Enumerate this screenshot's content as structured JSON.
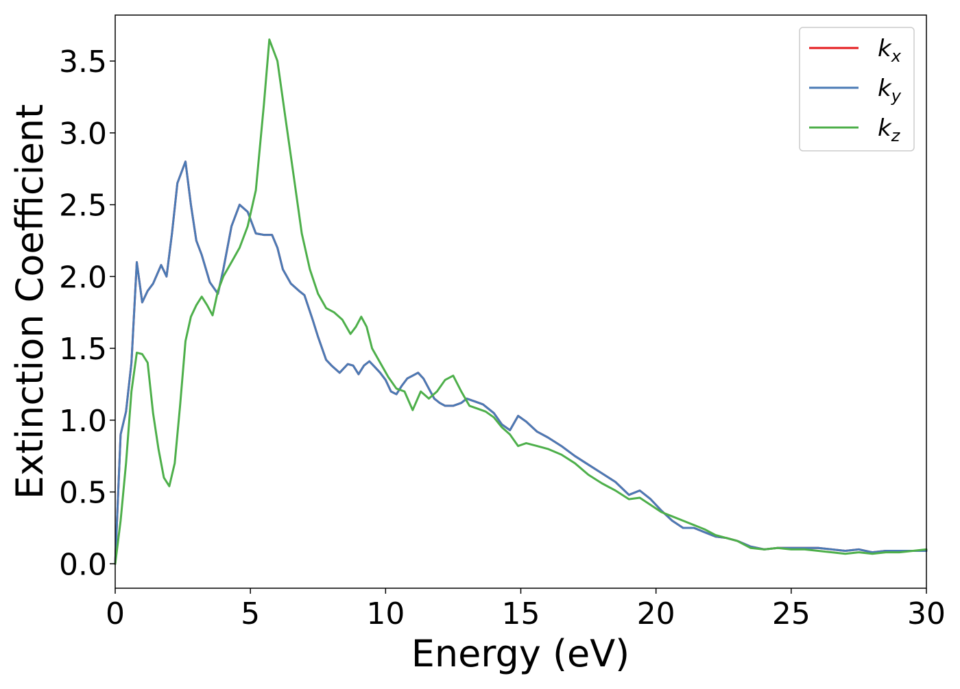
{
  "chart_data": {
    "type": "line",
    "xlabel": "Energy (eV)",
    "ylabel": "Extinction Coefficient",
    "xlim": [
      0,
      30
    ],
    "ylim": [
      -0.17,
      3.82
    ],
    "xticks": [
      0,
      5,
      10,
      15,
      20,
      25,
      30
    ],
    "yticks": [
      0.0,
      0.5,
      1.0,
      1.5,
      2.0,
      2.5,
      3.0,
      3.5
    ],
    "xtick_labels": [
      "0",
      "5",
      "10",
      "15",
      "20",
      "25",
      "30"
    ],
    "ytick_labels": [
      "0.0",
      "0.5",
      "1.0",
      "1.5",
      "2.0",
      "2.5",
      "3.0",
      "3.5"
    ],
    "grid": false,
    "legend_position": "top-right",
    "series": [
      {
        "name": "k_x",
        "label_base": "k",
        "label_sub": "x",
        "color": "#e41a1c",
        "x": [
          0,
          0.2,
          0.4,
          0.6,
          0.8,
          1.0,
          1.2,
          1.4,
          1.7,
          1.9,
          2.1,
          2.3,
          2.6,
          2.8,
          3.0,
          3.2,
          3.5,
          3.8,
          4.0,
          4.3,
          4.6,
          4.9,
          5.2,
          5.5,
          5.8,
          6.0,
          6.2,
          6.5,
          6.8,
          7.0,
          7.3,
          7.5,
          7.8,
          8.0,
          8.3,
          8.6,
          8.8,
          9.0,
          9.2,
          9.4,
          9.6,
          9.8,
          10.0,
          10.2,
          10.4,
          10.6,
          10.8,
          11.0,
          11.2,
          11.4,
          11.6,
          11.8,
          12.0,
          12.2,
          12.5,
          12.8,
          13.0,
          13.3,
          13.6,
          14.0,
          14.3,
          14.6,
          14.9,
          15.2,
          15.6,
          16.0,
          16.5,
          17.0,
          17.5,
          18.0,
          18.5,
          19.0,
          19.4,
          19.8,
          20.2,
          20.6,
          21.0,
          21.4,
          21.8,
          22.2,
          22.6,
          23.0,
          23.5,
          24.0,
          24.5,
          25.0,
          25.5,
          26.0,
          26.5,
          27.0,
          27.5,
          28.0,
          28.5,
          29.0,
          29.5,
          30.0
        ],
        "y": [
          0.0,
          0.9,
          1.06,
          1.4,
          2.1,
          1.82,
          1.9,
          1.95,
          2.08,
          2.0,
          2.3,
          2.65,
          2.8,
          2.5,
          2.25,
          2.15,
          1.96,
          1.88,
          2.05,
          2.35,
          2.5,
          2.45,
          2.3,
          2.29,
          2.29,
          2.2,
          2.05,
          1.95,
          1.9,
          1.87,
          1.7,
          1.58,
          1.42,
          1.38,
          1.33,
          1.39,
          1.38,
          1.32,
          1.38,
          1.41,
          1.37,
          1.33,
          1.28,
          1.2,
          1.18,
          1.24,
          1.29,
          1.31,
          1.33,
          1.29,
          1.22,
          1.15,
          1.12,
          1.1,
          1.1,
          1.12,
          1.15,
          1.13,
          1.11,
          1.05,
          0.97,
          0.93,
          1.03,
          0.99,
          0.92,
          0.88,
          0.82,
          0.75,
          0.69,
          0.63,
          0.57,
          0.48,
          0.51,
          0.45,
          0.37,
          0.3,
          0.25,
          0.25,
          0.22,
          0.19,
          0.18,
          0.16,
          0.12,
          0.1,
          0.11,
          0.11,
          0.11,
          0.11,
          0.1,
          0.09,
          0.1,
          0.08,
          0.09,
          0.09,
          0.09,
          0.09
        ]
      },
      {
        "name": "k_y",
        "label_base": "k",
        "label_sub": "y",
        "color": "#4a7ab5",
        "x": [
          0,
          0.2,
          0.4,
          0.6,
          0.8,
          1.0,
          1.2,
          1.4,
          1.7,
          1.9,
          2.1,
          2.3,
          2.6,
          2.8,
          3.0,
          3.2,
          3.5,
          3.8,
          4.0,
          4.3,
          4.6,
          4.9,
          5.2,
          5.5,
          5.8,
          6.0,
          6.2,
          6.5,
          6.8,
          7.0,
          7.3,
          7.5,
          7.8,
          8.0,
          8.3,
          8.6,
          8.8,
          9.0,
          9.2,
          9.4,
          9.6,
          9.8,
          10.0,
          10.2,
          10.4,
          10.6,
          10.8,
          11.0,
          11.2,
          11.4,
          11.6,
          11.8,
          12.0,
          12.2,
          12.5,
          12.8,
          13.0,
          13.3,
          13.6,
          14.0,
          14.3,
          14.6,
          14.9,
          15.2,
          15.6,
          16.0,
          16.5,
          17.0,
          17.5,
          18.0,
          18.5,
          19.0,
          19.4,
          19.8,
          20.2,
          20.6,
          21.0,
          21.4,
          21.8,
          22.2,
          22.6,
          23.0,
          23.5,
          24.0,
          24.5,
          25.0,
          25.5,
          26.0,
          26.5,
          27.0,
          27.5,
          28.0,
          28.5,
          29.0,
          29.5,
          30.0
        ],
        "y": [
          0.0,
          0.9,
          1.06,
          1.4,
          2.1,
          1.82,
          1.9,
          1.95,
          2.08,
          2.0,
          2.3,
          2.65,
          2.8,
          2.5,
          2.25,
          2.15,
          1.96,
          1.88,
          2.05,
          2.35,
          2.5,
          2.45,
          2.3,
          2.29,
          2.29,
          2.2,
          2.05,
          1.95,
          1.9,
          1.87,
          1.7,
          1.58,
          1.42,
          1.38,
          1.33,
          1.39,
          1.38,
          1.32,
          1.38,
          1.41,
          1.37,
          1.33,
          1.28,
          1.2,
          1.18,
          1.24,
          1.29,
          1.31,
          1.33,
          1.29,
          1.22,
          1.15,
          1.12,
          1.1,
          1.1,
          1.12,
          1.15,
          1.13,
          1.11,
          1.05,
          0.97,
          0.93,
          1.03,
          0.99,
          0.92,
          0.88,
          0.82,
          0.75,
          0.69,
          0.63,
          0.57,
          0.48,
          0.51,
          0.45,
          0.37,
          0.3,
          0.25,
          0.25,
          0.22,
          0.19,
          0.18,
          0.16,
          0.12,
          0.1,
          0.11,
          0.11,
          0.11,
          0.11,
          0.1,
          0.09,
          0.1,
          0.08,
          0.09,
          0.09,
          0.09,
          0.09
        ]
      },
      {
        "name": "k_z",
        "label_base": "k",
        "label_sub": "z",
        "color": "#4daf4a",
        "x": [
          0,
          0.2,
          0.4,
          0.6,
          0.8,
          1.0,
          1.2,
          1.4,
          1.6,
          1.8,
          2.0,
          2.2,
          2.4,
          2.6,
          2.8,
          3.0,
          3.2,
          3.4,
          3.6,
          3.8,
          4.0,
          4.3,
          4.6,
          4.9,
          5.2,
          5.5,
          5.7,
          6.0,
          6.3,
          6.6,
          6.9,
          7.2,
          7.5,
          7.8,
          8.1,
          8.4,
          8.7,
          8.9,
          9.1,
          9.3,
          9.5,
          9.8,
          10.1,
          10.4,
          10.7,
          11.0,
          11.3,
          11.6,
          11.9,
          12.2,
          12.5,
          12.8,
          13.1,
          13.4,
          13.7,
          14.0,
          14.3,
          14.6,
          14.9,
          15.2,
          15.6,
          16.0,
          16.5,
          17.0,
          17.5,
          18.0,
          18.5,
          19.0,
          19.4,
          19.8,
          20.2,
          20.6,
          21.0,
          21.4,
          21.8,
          22.2,
          22.6,
          23.0,
          23.5,
          24.0,
          24.5,
          25.0,
          25.5,
          26.0,
          26.5,
          27.0,
          27.5,
          28.0,
          28.5,
          29.0,
          29.5,
          30.0
        ],
        "y": [
          0.0,
          0.3,
          0.7,
          1.2,
          1.47,
          1.46,
          1.4,
          1.05,
          0.8,
          0.6,
          0.54,
          0.7,
          1.1,
          1.55,
          1.72,
          1.8,
          1.86,
          1.8,
          1.73,
          1.9,
          2.0,
          2.1,
          2.2,
          2.35,
          2.6,
          3.2,
          3.65,
          3.5,
          3.1,
          2.7,
          2.3,
          2.05,
          1.88,
          1.78,
          1.75,
          1.7,
          1.6,
          1.65,
          1.72,
          1.65,
          1.5,
          1.4,
          1.3,
          1.22,
          1.2,
          1.07,
          1.2,
          1.15,
          1.2,
          1.28,
          1.31,
          1.2,
          1.1,
          1.08,
          1.06,
          1.02,
          0.95,
          0.9,
          0.82,
          0.84,
          0.82,
          0.8,
          0.76,
          0.7,
          0.62,
          0.56,
          0.51,
          0.45,
          0.46,
          0.41,
          0.36,
          0.33,
          0.3,
          0.27,
          0.24,
          0.2,
          0.18,
          0.16,
          0.11,
          0.1,
          0.11,
          0.1,
          0.1,
          0.09,
          0.08,
          0.07,
          0.08,
          0.07,
          0.08,
          0.08,
          0.09,
          0.1
        ]
      }
    ]
  }
}
